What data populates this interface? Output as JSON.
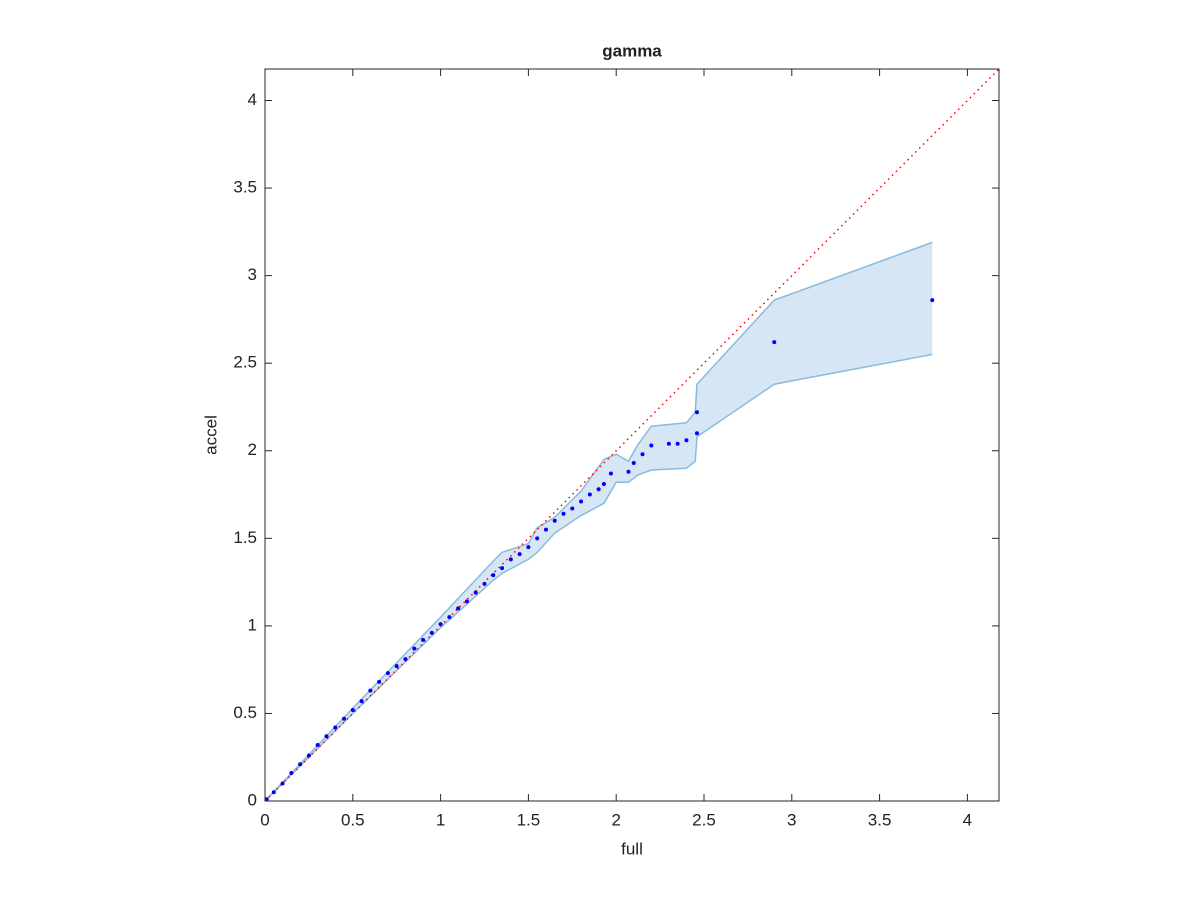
{
  "chart_data": {
    "type": "scatter",
    "title": "gamma",
    "xlabel": "full",
    "ylabel": "accel",
    "xlim": [
      0,
      4.18
    ],
    "ylim": [
      0,
      4.18
    ],
    "xticks": [
      0,
      0.5,
      1,
      1.5,
      2,
      2.5,
      3,
      3.5,
      4
    ],
    "yticks": [
      0,
      0.5,
      1,
      1.5,
      2,
      2.5,
      3,
      3.5,
      4
    ],
    "points": {
      "color": "#0000ff",
      "x": [
        0.01,
        0.05,
        0.1,
        0.15,
        0.2,
        0.25,
        0.3,
        0.35,
        0.4,
        0.45,
        0.5,
        0.55,
        0.6,
        0.65,
        0.7,
        0.75,
        0.8,
        0.85,
        0.9,
        0.95,
        1.0,
        1.05,
        1.1,
        1.15,
        1.2,
        1.25,
        1.3,
        1.35,
        1.4,
        1.45,
        1.5,
        1.55,
        1.6,
        1.65,
        1.7,
        1.75,
        1.8,
        1.85,
        1.9,
        1.93,
        1.97,
        2.07,
        2.1,
        2.15,
        2.2,
        2.3,
        2.35,
        2.4,
        2.46,
        2.46,
        2.9,
        3.8
      ],
      "y": [
        0.01,
        0.05,
        0.1,
        0.16,
        0.21,
        0.26,
        0.32,
        0.37,
        0.42,
        0.47,
        0.52,
        0.57,
        0.63,
        0.68,
        0.73,
        0.77,
        0.81,
        0.87,
        0.92,
        0.96,
        1.01,
        1.05,
        1.1,
        1.14,
        1.19,
        1.24,
        1.29,
        1.33,
        1.38,
        1.41,
        1.45,
        1.5,
        1.55,
        1.6,
        1.64,
        1.67,
        1.71,
        1.75,
        1.78,
        1.81,
        1.87,
        1.88,
        1.93,
        1.98,
        2.03,
        2.04,
        2.04,
        2.06,
        2.1,
        2.22,
        2.62,
        2.86
      ]
    },
    "band": {
      "fill": "#d6e6f4",
      "edge": "#88bbdd",
      "x": [
        0,
        0.5,
        1.0,
        1.3,
        1.35,
        1.5,
        1.55,
        1.65,
        1.8,
        1.93,
        2.0,
        2.07,
        2.12,
        2.2,
        2.4,
        2.45,
        2.46,
        2.9,
        3.8
      ],
      "upper": [
        0,
        0.53,
        1.05,
        1.37,
        1.42,
        1.47,
        1.56,
        1.62,
        1.77,
        1.95,
        1.98,
        1.94,
        2.03,
        2.14,
        2.16,
        2.22,
        2.38,
        2.86,
        3.19
      ],
      "lower": [
        0,
        0.5,
        0.99,
        1.26,
        1.3,
        1.38,
        1.42,
        1.53,
        1.63,
        1.7,
        1.82,
        1.82,
        1.86,
        1.89,
        1.9,
        1.94,
        2.08,
        2.38,
        2.55
      ]
    },
    "reference": {
      "color": "#ff0000",
      "x": [
        0,
        4.18
      ],
      "y": [
        0,
        4.18
      ]
    }
  }
}
